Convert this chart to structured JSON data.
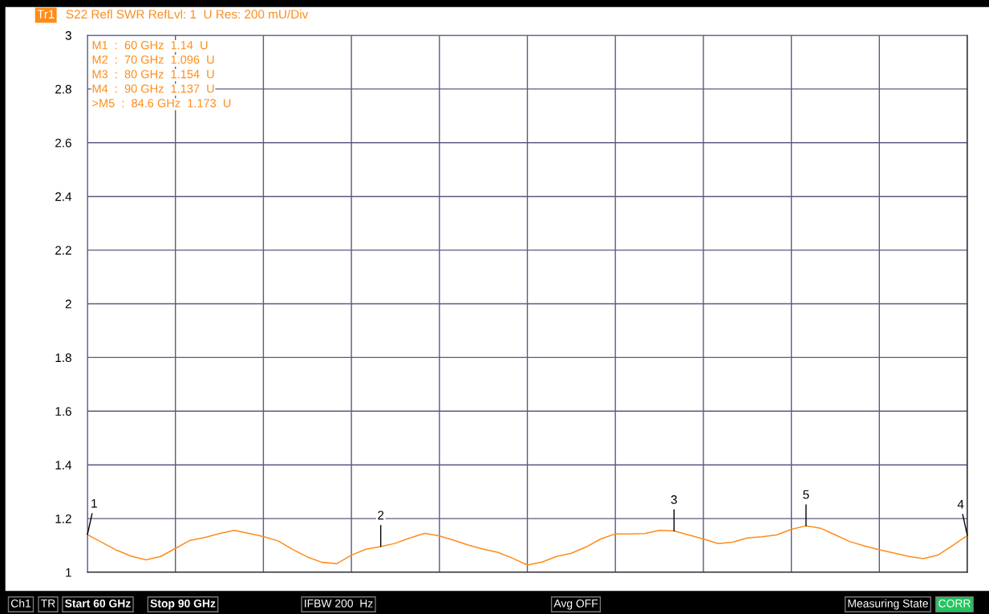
{
  "chart_data": {
    "type": "line",
    "title": "S22 Refl SWR RefLvl: 1  U Res: 200 mU/Div",
    "subtitle": "Tr1",
    "categories": [
      null,
      null,
      null,
      null,
      null,
      null,
      null,
      null,
      null,
      null,
      null,
      null,
      null,
      null,
      null,
      null,
      null,
      null,
      null,
      null,
      null,
      null,
      null,
      null,
      null,
      null,
      null,
      null,
      null,
      null,
      null,
      null,
      null,
      null,
      null,
      null,
      null,
      null,
      null,
      null,
      null,
      null,
      null,
      null,
      null,
      null,
      null,
      null,
      null,
      null,
      null,
      null,
      null,
      null,
      null,
      null,
      null,
      null,
      null,
      null,
      null
    ],
    "series": [
      {
        "color": "#ff8c1a",
        "values": [
          1.14,
          1.111,
          1.082,
          1.06,
          1.046,
          1.059,
          1.089,
          1.119,
          1.129,
          1.144,
          1.156,
          1.145,
          1.133,
          1.117,
          1.085,
          1.057,
          1.037,
          1.032,
          1.064,
          1.086,
          1.096,
          1.108,
          1.128,
          1.145,
          1.135,
          1.119,
          1.101,
          1.086,
          1.074,
          1.052,
          1.027,
          1.038,
          1.059,
          1.071,
          1.094,
          1.124,
          1.143,
          1.143,
          1.144,
          1.156,
          1.154,
          1.139,
          1.124,
          1.107,
          1.112,
          1.128,
          1.132,
          1.139,
          1.16,
          1.173,
          1.164,
          1.139,
          1.114,
          1.098,
          1.084,
          1.072,
          1.059,
          1.051,
          1.064,
          1.1,
          1.137
        ]
      }
    ],
    "ylim": [
      1,
      3
    ],
    "yticks": [
      1,
      1.2,
      1.4,
      1.6,
      1.8,
      2,
      2.2,
      2.4,
      2.6,
      2.8,
      3
    ],
    "tick_labels": "y",
    "grid": true,
    "legend": false,
    "marker": "none",
    "line_style": "solid",
    "annotations": [
      "M1  :  60 GHz  1.14  U",
      "M2  :  70 GHz  1.096  U",
      "M3  :  80 GHz  1.154  U",
      "M4  :  90 GHz  1.137  U",
      ">M5  :  84.6 GHz  1.173  U",
      "Ch1",
      "TR",
      "Start 60 GHz",
      "Stop 90 GHz",
      "IFBW 200  Hz",
      "Avg OFF",
      "Measuring State",
      "CORR",
      {
        "text": "1",
        "y": 1.14
      },
      {
        "text": "2",
        "y": 1.096
      },
      {
        "text": "3",
        "y": 1.154
      },
      {
        "text": "4",
        "y": 1.137
      },
      {
        "text": "5",
        "y": 1.173
      }
    ]
  }
}
